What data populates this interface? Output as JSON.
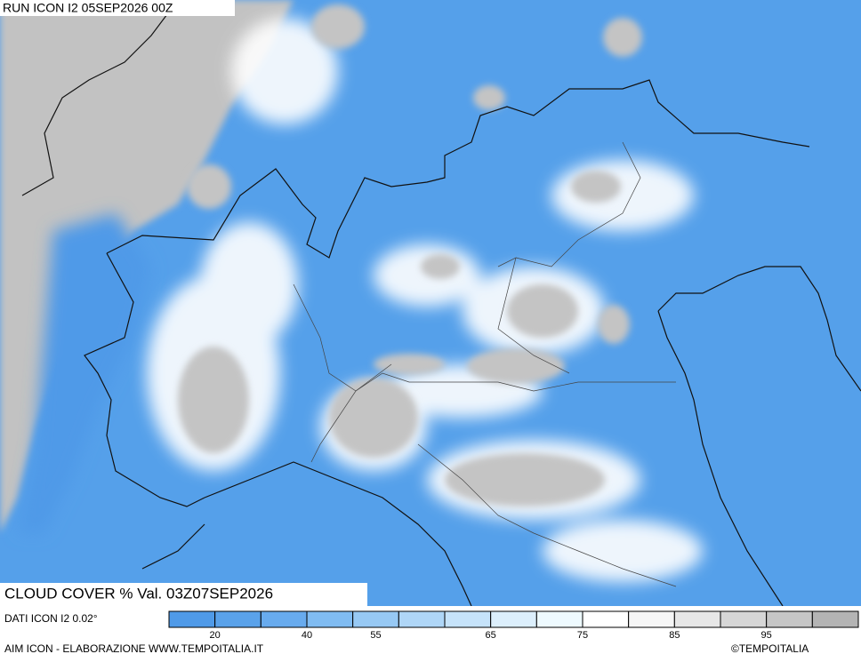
{
  "header": {
    "run": "RUN ICON I2 05SEP2026 00Z"
  },
  "map": {
    "title": "CLOUD COVER % Val. 03Z07SEP2026"
  },
  "legend": {
    "source": "DATI ICON I2 0.02°",
    "colors": [
      "#4f9ae8",
      "#5aa2ea",
      "#68abee",
      "#80bcf2",
      "#97c9f4",
      "#afd6f7",
      "#c6e3fa",
      "#dceffc",
      "#eefaff",
      "#ffffff",
      "#f6f6f6",
      "#e7e7e7",
      "#d6d6d6",
      "#c6c6c6",
      "#b4b4b4"
    ],
    "ticks": [
      20,
      40,
      55,
      65,
      75,
      85,
      95
    ]
  },
  "footer": {
    "credit": "AIM ICON - ELABORAZIONE WWW.TEMPOITALIA.IT",
    "copyright": "©TEMPOITALIA"
  }
}
